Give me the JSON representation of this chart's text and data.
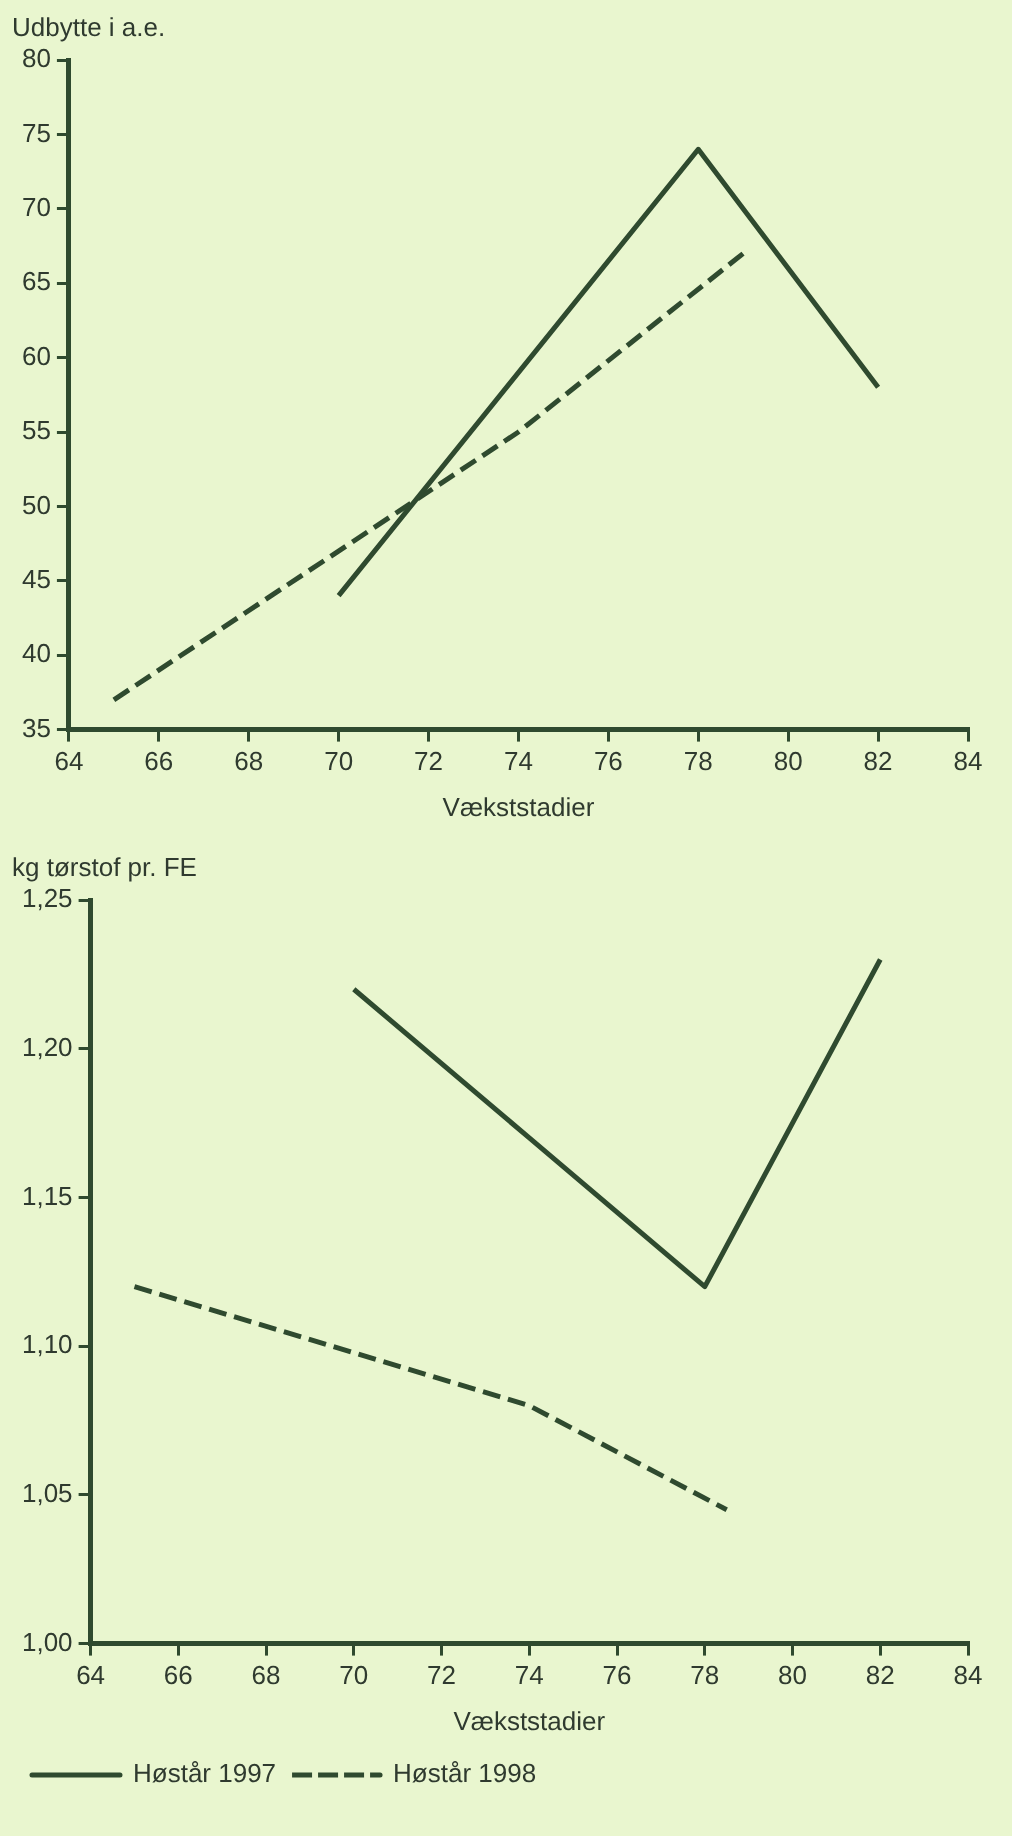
{
  "chart_data": [
    {
      "type": "line",
      "ylabel": "Udbytte i a.e.",
      "xlabel": "Vækststadier",
      "xlim": [
        64,
        84
      ],
      "xticks": [
        64,
        66,
        68,
        70,
        72,
        74,
        76,
        78,
        80,
        82,
        84
      ],
      "ylim": [
        35,
        80
      ],
      "yticks": [
        35,
        40,
        45,
        50,
        55,
        60,
        65,
        70,
        75,
        80
      ],
      "grid": false,
      "legend": false,
      "marker": "none",
      "series": [
        {
          "color": "#2f4a2f",
          "line_style": "solid",
          "x": [
            70,
            78,
            82
          ],
          "values": [
            44,
            74,
            58
          ]
        },
        {
          "color": "#2f4a2f",
          "line_style": "dashed",
          "x": [
            65,
            74,
            79
          ],
          "values": [
            37,
            55,
            67
          ]
        }
      ]
    },
    {
      "type": "line",
      "ylabel": "kg tørstof pr. FE",
      "xlabel": "Vækststadier",
      "xlim": [
        64,
        84
      ],
      "xticks": [
        64,
        66,
        68,
        70,
        72,
        74,
        76,
        78,
        80,
        82,
        84
      ],
      "ylim": [
        1.0,
        1.25
      ],
      "yticks": [
        {
          "value": 1.0,
          "label": "1,00"
        },
        {
          "value": 1.05,
          "label": "1,05"
        },
        {
          "value": 1.1,
          "label": "1,10"
        },
        {
          "value": 1.15,
          "label": "1,15"
        },
        {
          "value": 1.2,
          "label": "1,20"
        },
        {
          "value": 1.25,
          "label": "1,25"
        }
      ],
      "grid": false,
      "legend": "bottom",
      "marker": "none",
      "series": [
        {
          "name": "Høstår 1997",
          "color": "#2f4a2f",
          "line_style": "solid",
          "x": [
            70,
            74,
            78,
            82
          ],
          "values": [
            1.22,
            1.17,
            1.12,
            1.23
          ]
        },
        {
          "name": "Høstår 1998",
          "color": "#2f4a2f",
          "line_style": "dashed",
          "x": [
            65,
            74,
            78.5
          ],
          "values": [
            1.12,
            1.08,
            1.045
          ]
        }
      ]
    }
  ]
}
